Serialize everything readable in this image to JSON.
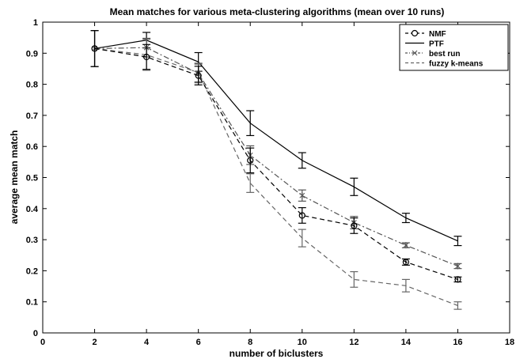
{
  "chart_data": {
    "type": "line",
    "title": "Mean matches for various meta-clustering algorithms (mean over 10 runs)",
    "xlabel": "number of biclusters",
    "ylabel": "average mean match",
    "xlim": [
      0,
      18
    ],
    "ylim": [
      0,
      1
    ],
    "xticks": [
      0,
      2,
      4,
      6,
      8,
      10,
      12,
      14,
      16,
      18
    ],
    "yticks": [
      0,
      0.1,
      0.2,
      0.3,
      0.4,
      0.5,
      0.6,
      0.7,
      0.8,
      0.9,
      1
    ],
    "ytick_labels": [
      "0",
      "0.1",
      "0.2",
      "0.3",
      "0.4",
      "0.5",
      "0.6",
      "0.7",
      "0.8",
      "0.9",
      "1"
    ],
    "grid": false,
    "legend_position": "top-right",
    "x": [
      2,
      4,
      6,
      8,
      10,
      12,
      14,
      16
    ],
    "series": [
      {
        "name": "NMF",
        "values": [
          0.915,
          0.888,
          0.828,
          0.555,
          0.378,
          0.345,
          0.228,
          0.172
        ],
        "errors": [
          0.058,
          0.04,
          0.03,
          0.04,
          0.025,
          0.025,
          0.01,
          0.008
        ],
        "color": "#000000",
        "line_style": "dashed",
        "marker": "circle"
      },
      {
        "name": "PTF",
        "values": [
          0.915,
          0.942,
          0.872,
          0.675,
          0.555,
          0.47,
          0.37,
          0.296
        ],
        "errors": [
          0.058,
          0.025,
          0.03,
          0.04,
          0.025,
          0.028,
          0.015,
          0.015
        ],
        "color": "#000000",
        "line_style": "solid",
        "marker": "none"
      },
      {
        "name": "best run",
        "values": [
          0.915,
          0.918,
          0.835,
          0.572,
          0.442,
          0.355,
          0.282,
          0.215
        ],
        "errors": [
          0.058,
          0.03,
          0.03,
          0.03,
          0.018,
          0.02,
          0.008,
          0.008
        ],
        "color": "#555555",
        "line_style": "dashdot",
        "marker": "x"
      },
      {
        "name": "fuzzy k-means",
        "values": [
          0.915,
          0.895,
          0.838,
          0.482,
          0.305,
          0.172,
          0.152,
          0.088
        ],
        "errors": [
          0.058,
          0.05,
          0.03,
          0.03,
          0.028,
          0.025,
          0.02,
          0.012
        ],
        "color": "#666666",
        "line_style": "dashed",
        "marker": "none"
      }
    ]
  }
}
